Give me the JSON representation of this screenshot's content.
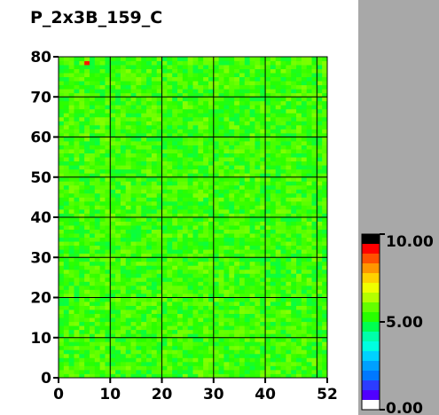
{
  "chart_data": {
    "type": "heatmap",
    "title": "P_2x3B_159_C",
    "x_range": [
      0,
      52
    ],
    "y_range": [
      0,
      80
    ],
    "x_ticks": [
      {
        "value": 0,
        "label": "0"
      },
      {
        "value": 10,
        "label": "10"
      },
      {
        "value": 20,
        "label": "20"
      },
      {
        "value": 30,
        "label": "30"
      },
      {
        "value": 40,
        "label": "40"
      },
      {
        "value": 52,
        "label": "52"
      }
    ],
    "y_ticks": [
      {
        "value": 0,
        "label": "0"
      },
      {
        "value": 10,
        "label": "10"
      },
      {
        "value": 20,
        "label": "20"
      },
      {
        "value": 30,
        "label": "30"
      },
      {
        "value": 40,
        "label": "40"
      },
      {
        "value": 50,
        "label": "50"
      },
      {
        "value": 60,
        "label": "60"
      },
      {
        "value": 70,
        "label": "70"
      },
      {
        "value": 80,
        "label": "80"
      }
    ],
    "grid_x": [
      10,
      20,
      30,
      40,
      50
    ],
    "grid_y": [
      10,
      20,
      30,
      40,
      50,
      60,
      70
    ],
    "grid": true,
    "typical_value": 5.5,
    "value_spread": 0.7,
    "hot_cells": [
      {
        "x": 5,
        "y": 78,
        "value": 9.5
      }
    ],
    "colorbar": {
      "min": 0.0,
      "max": 10.0,
      "ticks": [
        {
          "value": 10.0,
          "label": "10.00"
        },
        {
          "value": 5.0,
          "label": "5.00"
        },
        {
          "value": 0.0,
          "label": "0.00"
        }
      ],
      "colors": [
        "#ffffff",
        "#5000ff",
        "#2c3cff",
        "#0078ff",
        "#00a0ff",
        "#00d2ff",
        "#00ffe0",
        "#00ffaa",
        "#00ff50",
        "#28ff00",
        "#64ff00",
        "#b4ff00",
        "#f0ff00",
        "#ffd200",
        "#ff9600",
        "#ff5000",
        "#ff0000",
        "#000000"
      ]
    }
  }
}
